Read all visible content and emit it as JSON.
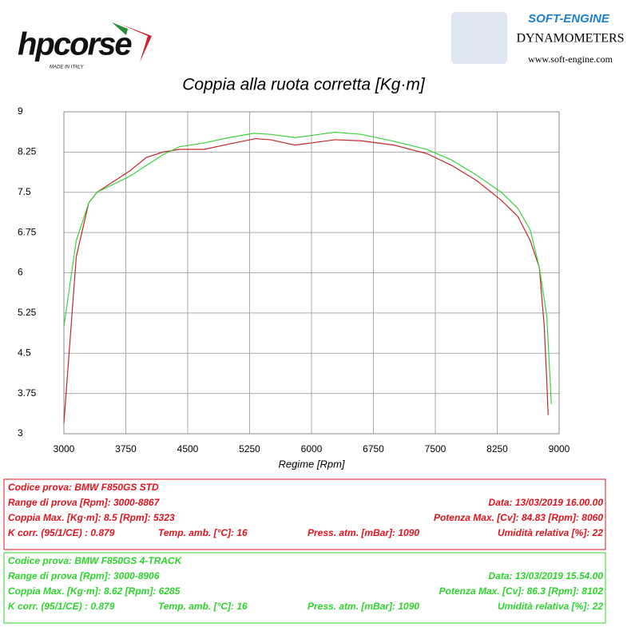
{
  "header": {
    "brand": "hpcorse",
    "brand_sub": "MADE IN ITALY",
    "lab": "SOFT-ENGINE",
    "lab_sub": "DYNAMOMETERS",
    "lab_url": "www.soft-engine.com"
  },
  "chart_data": {
    "type": "line",
    "title": "Coppia alla ruota corretta [Kg·m]",
    "x_label": "Regime [Rpm]",
    "xlim": [
      3000,
      9000
    ],
    "xticks": [
      3000,
      3750,
      4500,
      5250,
      6000,
      6750,
      7500,
      8250,
      9000
    ],
    "ylim": [
      3,
      9
    ],
    "yticks": [
      3,
      3.75,
      4.5,
      5.25,
      6,
      6.75,
      7.5,
      8.25,
      9
    ],
    "grid": true,
    "series": [
      {
        "color": "#c0282a",
        "x": [
          3000,
          3150,
          3300,
          3400,
          3600,
          3800,
          4000,
          4200,
          4400,
          4700,
          5000,
          5323,
          5500,
          5800,
          6000,
          6285,
          6600,
          7000,
          7400,
          7700,
          8000,
          8300,
          8500,
          8650,
          8760,
          8820,
          8850,
          8867
        ],
        "values": [
          3.2,
          6.3,
          7.3,
          7.5,
          7.7,
          7.9,
          8.15,
          8.25,
          8.3,
          8.3,
          8.4,
          8.5,
          8.48,
          8.38,
          8.42,
          8.48,
          8.46,
          8.38,
          8.22,
          8.0,
          7.72,
          7.35,
          7.05,
          6.6,
          6.1,
          5.0,
          4.0,
          3.35
        ]
      },
      {
        "color": "#3ed23e",
        "x": [
          3000,
          3150,
          3300,
          3400,
          3600,
          3800,
          4000,
          4200,
          4400,
          4700,
          5000,
          5300,
          5500,
          5800,
          6000,
          6285,
          6600,
          7000,
          7400,
          7700,
          8000,
          8300,
          8500,
          8650,
          8760,
          8850,
          8906
        ],
        "values": [
          5.0,
          6.6,
          7.3,
          7.5,
          7.65,
          7.8,
          8.0,
          8.2,
          8.35,
          8.42,
          8.52,
          8.6,
          8.58,
          8.52,
          8.56,
          8.62,
          8.58,
          8.45,
          8.3,
          8.1,
          7.82,
          7.5,
          7.2,
          6.8,
          6.1,
          5.2,
          3.55
        ]
      }
    ]
  },
  "tests": [
    {
      "color": "#e0141e",
      "code": "Codice prova: BMW F850GS STD",
      "range": "Range di prova [Rpm]: 3000-8867",
      "date": "Data: 13/03/2019   16.00.00",
      "torque": "Coppia Max. [Kg·m]: 8.5   [Rpm]: 5323",
      "power": "Potenza Max. [Cv]: 84.83   [Rpm]: 8060",
      "kcorr": "K corr. (95/1/CE) : 0.879",
      "temp": "Temp. amb. [°C]: 16",
      "press": "Press. atm. [mBar]: 1090",
      "hum": "Umidità relativa [%]: 22"
    },
    {
      "color": "#2ed42e",
      "code": "Codice prova: BMW F850GS 4-TRACK",
      "range": "Range di prova [Rpm]: 3000-8906",
      "date": "Data: 13/03/2019   15.54.00",
      "torque": "Coppia Max. [Kg·m]: 8.62   [Rpm]: 6285",
      "power": "Potenza Max. [Cv]: 86.3   [Rpm]: 8102",
      "kcorr": "K corr. (95/1/CE) : 0.879",
      "temp": "Temp. amb. [°C]: 16",
      "press": "Press. atm. [mBar]: 1090",
      "hum": "Umidità relativa [%]: 22"
    }
  ]
}
